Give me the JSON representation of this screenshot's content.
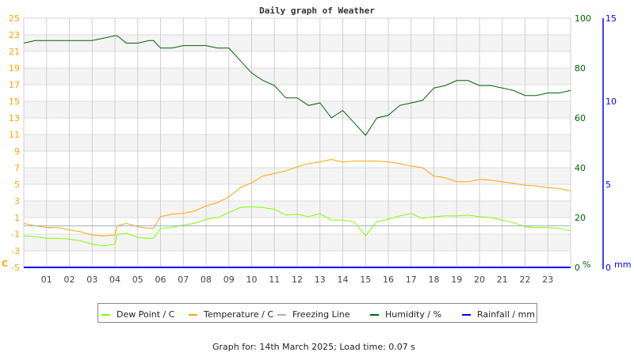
{
  "chart_data": {
    "type": "line",
    "title": "Daily graph of Weather",
    "x_ticks": [
      "01",
      "02",
      "03",
      "04",
      "05",
      "06",
      "07",
      "08",
      "09",
      "10",
      "11",
      "12",
      "13",
      "14",
      "15",
      "16",
      "17",
      "18",
      "19",
      "20",
      "21",
      "22",
      "23"
    ],
    "xlim": [
      0,
      24
    ],
    "left_axis": {
      "label": "C",
      "ylim": [
        -5,
        25
      ],
      "ticks": [
        25,
        23,
        21,
        19,
        17,
        15,
        13,
        11,
        9,
        7,
        5,
        3,
        1,
        -1,
        -3,
        -5
      ],
      "color": "#ffa500"
    },
    "humidity_axis": {
      "label": "%",
      "ylim": [
        0,
        100
      ],
      "ticks": [
        100,
        80,
        60,
        40,
        20,
        0
      ],
      "color": "#006400"
    },
    "rain_axis": {
      "label": "mm",
      "ylim": [
        0,
        15
      ],
      "ticks": [
        15,
        10,
        5,
        0
      ],
      "color": "#0000ff"
    },
    "grid": true,
    "legend_position": "bottom",
    "x": [
      0,
      0.5,
      1,
      1.5,
      2,
      2.5,
      3,
      3.5,
      4,
      4.1,
      4.5,
      5,
      5.5,
      5.7,
      6,
      6.5,
      7,
      7.5,
      8,
      8.5,
      9,
      9.5,
      10,
      10.5,
      11,
      11.5,
      12,
      12.5,
      13,
      13.5,
      14,
      14.5,
      15,
      15.5,
      16,
      16.5,
      17,
      17.5,
      18,
      18.5,
      19,
      19.5,
      20,
      20.5,
      21,
      21.5,
      22,
      22.5,
      23,
      23.5,
      24
    ],
    "series": [
      {
        "name": "Dew Point / C",
        "color": "#7fff00",
        "axis": "left",
        "values": [
          -1.2,
          -1.3,
          -1.5,
          -1.5,
          -1.6,
          -1.8,
          -2.2,
          -2.4,
          -2.2,
          -1.0,
          -0.9,
          -1.4,
          -1.5,
          -1.5,
          -0.3,
          -0.2,
          0.1,
          0.3,
          0.8,
          1.0,
          1.6,
          2.2,
          2.3,
          2.2,
          2.0,
          1.3,
          1.4,
          1.1,
          1.5,
          0.7,
          0.7,
          0.5,
          -1.2,
          0.5,
          0.8,
          1.2,
          1.5,
          0.9,
          1.1,
          1.2,
          1.2,
          1.3,
          1.1,
          1.0,
          0.7,
          0.4,
          -0.1,
          -0.2,
          -0.2,
          -0.3,
          -0.6
        ]
      },
      {
        "name": "Temperature / C",
        "color": "#ffa500",
        "axis": "left",
        "values": [
          0.3,
          0.0,
          -0.2,
          -0.2,
          -0.5,
          -0.7,
          -1.1,
          -1.2,
          -1.1,
          0.0,
          0.3,
          -0.1,
          -0.3,
          -0.3,
          1.1,
          1.4,
          1.5,
          1.8,
          2.4,
          2.8,
          3.5,
          4.6,
          5.2,
          6.0,
          6.3,
          6.6,
          7.1,
          7.5,
          7.7,
          8.0,
          7.7,
          7.8,
          7.8,
          7.8,
          7.7,
          7.5,
          7.2,
          7.0,
          6.0,
          5.8,
          5.3,
          5.3,
          5.6,
          5.5,
          5.3,
          5.1,
          4.9,
          4.8,
          4.6,
          4.5,
          4.2
        ]
      },
      {
        "name": "Freezing Line",
        "color": "#a0b0c8",
        "axis": "left",
        "values": [
          0,
          0,
          0,
          0,
          0,
          0,
          0,
          0,
          0,
          0,
          0,
          0,
          0,
          0,
          0,
          0,
          0,
          0,
          0,
          0,
          0,
          0,
          0,
          0,
          0,
          0,
          0,
          0,
          0,
          0,
          0,
          0,
          0,
          0,
          0,
          0,
          0,
          0,
          0,
          0,
          0,
          0,
          0,
          0,
          0,
          0,
          0,
          0,
          0,
          0,
          0
        ]
      },
      {
        "name": "Humidity / %",
        "color": "#006400",
        "axis": "humidity",
        "values": [
          90,
          91,
          91,
          91,
          91,
          91,
          91,
          92,
          93,
          93,
          90,
          90,
          91,
          91,
          88,
          88,
          89,
          89,
          89,
          88,
          88,
          83,
          78,
          75,
          73,
          68,
          68,
          65,
          66,
          60,
          63,
          58,
          53,
          60,
          61,
          65,
          66,
          67,
          72,
          73,
          75,
          75,
          73,
          73,
          72,
          71,
          69,
          69,
          70,
          70,
          71
        ]
      },
      {
        "name": "Rainfall / mm",
        "color": "#0000ff",
        "axis": "rain",
        "values": [
          0,
          0,
          0,
          0,
          0,
          0,
          0,
          0,
          0,
          0,
          0,
          0,
          0,
          0,
          0,
          0,
          0,
          0,
          0,
          0,
          0,
          0,
          0,
          0,
          0,
          0,
          0,
          0,
          0,
          0,
          0,
          0,
          0,
          0,
          0,
          0,
          0,
          0,
          0,
          0,
          0,
          0,
          0,
          0,
          0,
          0,
          0,
          0,
          0,
          0,
          0
        ]
      }
    ]
  },
  "footer": "Graph for: 14th March 2025; Load time: 0.07 s"
}
